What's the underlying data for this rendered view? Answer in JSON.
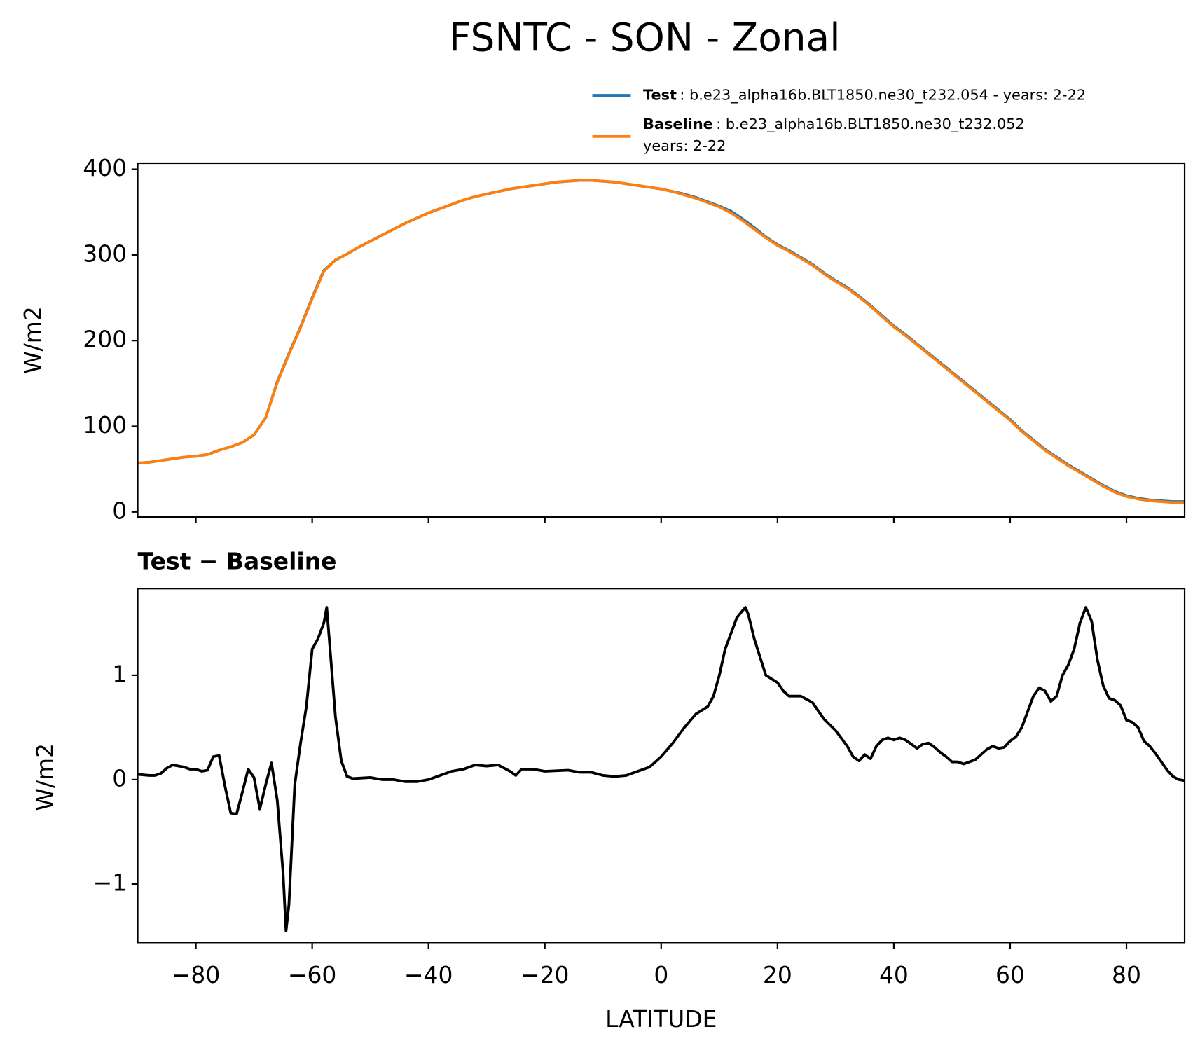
{
  "title": "FSNTC - SON - Zonal",
  "chart_data": [
    {
      "type": "line",
      "ylabel": "W/m2",
      "xlim": [
        -90,
        90
      ],
      "xticks": [
        -80,
        -60,
        -40,
        -20,
        0,
        20,
        40,
        60,
        80
      ],
      "ylim": [
        -6,
        407
      ],
      "yticks": [
        0,
        100,
        200,
        300,
        400
      ],
      "x": [
        -90,
        -88,
        -86,
        -84,
        -82,
        -80,
        -78,
        -76,
        -74,
        -72,
        -70,
        -68,
        -66,
        -64,
        -62,
        -60,
        -58,
        -56,
        -54,
        -52,
        -50,
        -48,
        -46,
        -44,
        -42,
        -40,
        -38,
        -36,
        -34,
        -32,
        -30,
        -28,
        -26,
        -24,
        -22,
        -20,
        -18,
        -16,
        -14,
        -12,
        -10,
        -8,
        -6,
        -4,
        -2,
        0,
        2,
        4,
        6,
        8,
        10,
        12,
        14,
        16,
        18,
        20,
        22,
        24,
        26,
        28,
        30,
        32,
        34,
        36,
        38,
        40,
        42,
        44,
        46,
        48,
        50,
        52,
        54,
        56,
        58,
        60,
        62,
        64,
        66,
        68,
        70,
        72,
        74,
        76,
        78,
        80,
        82,
        84,
        86,
        88,
        90
      ],
      "series": [
        {
          "name": "Test",
          "description": [
            ": b.e23_alpha16b.BLT1850.ne30_t232.054 - years: 2-22"
          ],
          "color": "#1f77b4",
          "values": [
            57,
            58,
            60,
            62,
            64,
            65,
            67,
            72,
            76,
            81,
            90,
            110,
            152,
            185,
            216,
            250,
            282,
            294,
            301,
            309,
            316,
            323,
            330,
            337,
            343,
            349,
            354,
            359,
            364,
            368,
            371,
            374,
            377,
            379,
            381,
            383,
            385,
            386,
            387,
            387,
            386,
            385,
            383,
            381,
            379,
            377,
            374,
            371,
            367,
            362,
            357,
            351,
            342,
            332,
            321,
            312,
            305,
            297,
            289,
            279,
            270,
            262,
            252,
            241,
            229,
            217,
            207,
            196,
            185,
            174,
            163,
            152,
            141,
            130,
            119,
            108,
            95,
            84,
            73,
            64,
            55,
            47,
            39,
            31,
            24,
            19,
            16,
            14,
            13,
            12,
            12
          ]
        },
        {
          "name": "Baseline",
          "description": [
            ": b.e23_alpha16b.BLT1850.ne30_t232.052",
            "years: 2-22"
          ],
          "color": "#ff7f0e",
          "values": [
            57,
            58,
            60,
            62,
            64,
            65,
            67,
            72,
            76,
            81,
            90,
            110,
            151,
            184,
            215,
            249,
            281,
            294,
            301,
            309,
            316,
            323,
            330,
            337,
            343,
            349,
            354,
            359,
            364,
            368,
            371,
            374,
            377,
            379,
            381,
            383,
            385,
            386,
            387,
            387,
            386,
            385,
            383,
            381,
            379,
            377,
            374,
            370,
            366,
            361,
            356,
            349,
            340,
            330,
            320,
            311,
            304,
            296,
            288,
            278,
            269,
            261,
            251,
            240,
            228,
            216,
            206,
            195,
            184,
            173,
            162,
            151,
            140,
            129,
            118,
            107,
            94,
            83,
            72,
            63,
            54,
            46,
            38,
            30,
            23,
            18,
            15,
            13,
            12,
            11,
            11
          ]
        }
      ]
    },
    {
      "type": "line",
      "title": "Test − Baseline",
      "ylabel": "W/m2",
      "xlabel": "LATITUDE",
      "xlim": [
        -90,
        90
      ],
      "xticks": [
        {
          "value": -80,
          "label": "−80"
        },
        {
          "value": -60,
          "label": "−60"
        },
        {
          "value": -40,
          "label": "−40"
        },
        {
          "value": -20,
          "label": "−20"
        },
        0,
        20,
        40,
        60,
        80
      ],
      "ylim": [
        -1.56,
        1.83
      ],
      "yticks": [
        {
          "value": -1,
          "label": "−1"
        },
        0,
        1
      ],
      "color": "#000000",
      "x": [
        -90,
        -88,
        -87,
        -86,
        -85,
        -84,
        -83,
        -82,
        -81,
        -80,
        -79,
        -78,
        -77,
        -76,
        -75,
        -74,
        -73,
        -72,
        -71,
        -70,
        -69,
        -68,
        -67,
        -66,
        -65,
        -64.5,
        -64,
        -63,
        -62,
        -61,
        -60,
        -59,
        -58,
        -57.5,
        -57,
        -56,
        -55,
        -54,
        -53,
        -50,
        -48,
        -46,
        -44,
        -42,
        -40,
        -38,
        -36,
        -34,
        -32,
        -30,
        -28,
        -26,
        -25,
        -24,
        -22,
        -20,
        -16,
        -14,
        -12,
        -10,
        -8,
        -6,
        -4,
        -2,
        0,
        2,
        4,
        6,
        8,
        9,
        10,
        11,
        12,
        13,
        14,
        14.5,
        15,
        16,
        18,
        20,
        21,
        22,
        24,
        26,
        28,
        30,
        32,
        33,
        34,
        35,
        36,
        37,
        38,
        39,
        40,
        41,
        42,
        43,
        44,
        45,
        46,
        47,
        48,
        49,
        50,
        51,
        52,
        53,
        54,
        55,
        56,
        57,
        58,
        59,
        60,
        61,
        62,
        63,
        64,
        65,
        66,
        67,
        68,
        69,
        70,
        71,
        72,
        73,
        74,
        75,
        76,
        77,
        78,
        79,
        80,
        81,
        82,
        83,
        84,
        85,
        86,
        87,
        88,
        89,
        90
      ],
      "values": [
        0.05,
        0.04,
        0.04,
        0.06,
        0.11,
        0.14,
        0.13,
        0.12,
        0.1,
        0.1,
        0.08,
        0.09,
        0.22,
        0.23,
        -0.06,
        -0.32,
        -0.33,
        -0.12,
        0.1,
        0.02,
        -0.28,
        -0.05,
        0.16,
        -0.2,
        -0.9,
        -1.45,
        -1.2,
        -0.05,
        0.35,
        0.7,
        1.25,
        1.35,
        1.5,
        1.65,
        1.3,
        0.6,
        0.18,
        0.03,
        0.01,
        0.02,
        0.0,
        0.0,
        -0.02,
        -0.02,
        0.0,
        0.04,
        0.08,
        0.1,
        0.14,
        0.13,
        0.14,
        0.08,
        0.04,
        0.1,
        0.1,
        0.08,
        0.09,
        0.07,
        0.07,
        0.04,
        0.03,
        0.04,
        0.08,
        0.12,
        0.22,
        0.35,
        0.5,
        0.63,
        0.7,
        0.8,
        1.0,
        1.25,
        1.4,
        1.55,
        1.62,
        1.65,
        1.58,
        1.35,
        1.0,
        0.93,
        0.85,
        0.8,
        0.8,
        0.74,
        0.58,
        0.47,
        0.32,
        0.22,
        0.18,
        0.24,
        0.2,
        0.32,
        0.38,
        0.4,
        0.38,
        0.4,
        0.38,
        0.34,
        0.3,
        0.34,
        0.35,
        0.31,
        0.26,
        0.22,
        0.17,
        0.17,
        0.15,
        0.17,
        0.19,
        0.24,
        0.29,
        0.32,
        0.3,
        0.31,
        0.37,
        0.41,
        0.5,
        0.65,
        0.8,
        0.88,
        0.85,
        0.75,
        0.8,
        1.0,
        1.1,
        1.25,
        1.5,
        1.65,
        1.52,
        1.15,
        0.9,
        0.78,
        0.76,
        0.71,
        0.57,
        0.55,
        0.5,
        0.37,
        0.32,
        0.25,
        0.17,
        0.09,
        0.03,
        0.0,
        -0.01
      ]
    }
  ]
}
